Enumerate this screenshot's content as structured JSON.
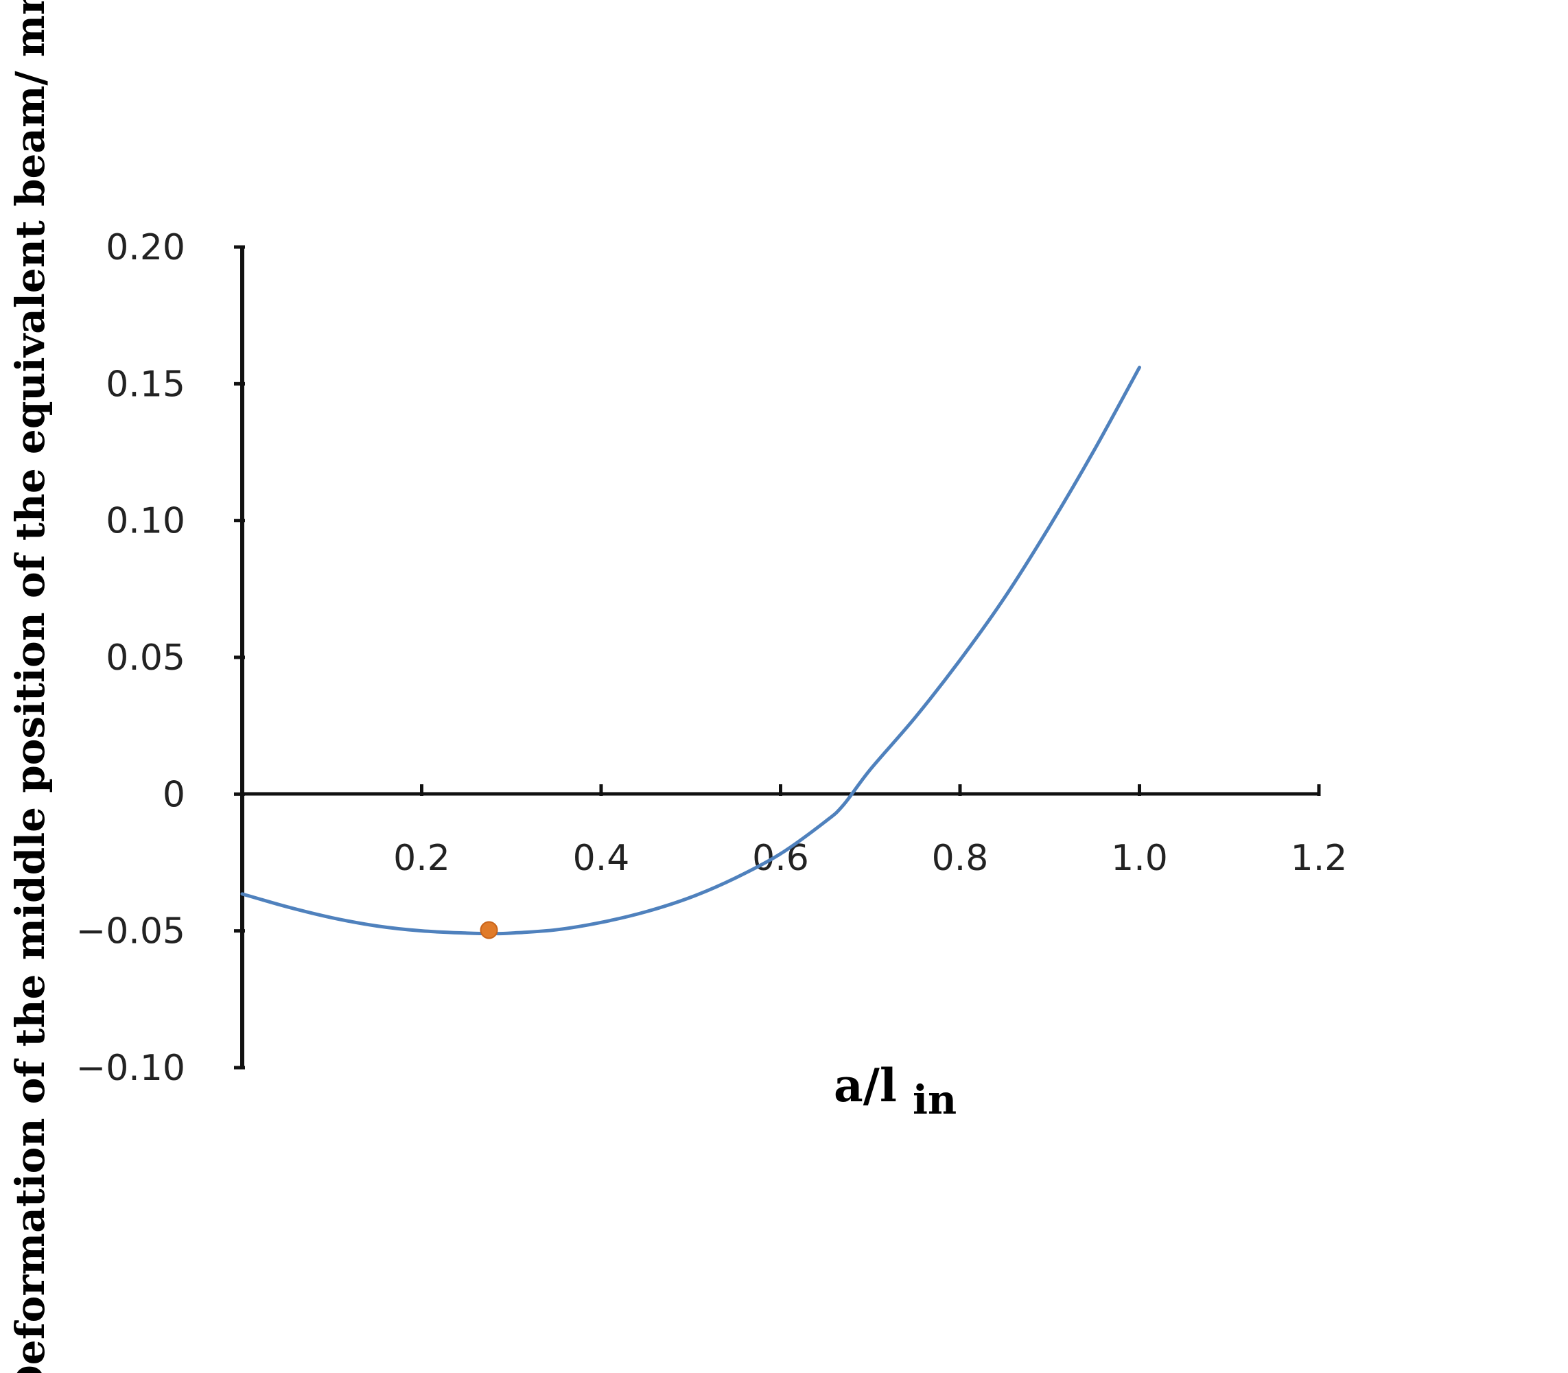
{
  "chart_data": {
    "type": "line",
    "title": "",
    "xlabel": "a/l",
    "xlabel_subscript": "in",
    "ylabel": "Deformation of the middle position of the equivalent beam/ mm",
    "xlim": [
      0,
      1.2
    ],
    "ylim": [
      -0.1,
      0.2
    ],
    "x_ticks": [
      0.2,
      0.4,
      0.6,
      0.8,
      1.0,
      1.2
    ],
    "x_tick_labels": [
      "0.2",
      "0.4",
      "0.6",
      "0.8",
      "1.0",
      "1.2"
    ],
    "y_ticks": [
      0.2,
      0.15,
      0.1,
      0.05,
      0,
      -0.05,
      -0.1
    ],
    "y_tick_labels": [
      "0.20",
      "0.15",
      "0.10",
      "0.05",
      "0",
      "−0.05",
      "−0.10"
    ],
    "grid": false,
    "series": [
      {
        "color": "#4f81bd",
        "x": [
          0.0,
          0.05,
          0.1,
          0.15,
          0.2,
          0.25,
          0.28,
          0.3,
          0.35,
          0.4,
          0.45,
          0.5,
          0.55,
          0.6,
          0.65,
          0.67,
          0.7,
          0.75,
          0.8,
          0.85,
          0.9,
          0.95,
          1.0
        ],
        "y": [
          -0.0365,
          -0.0412,
          -0.0452,
          -0.0482,
          -0.05,
          -0.0508,
          -0.051,
          -0.0508,
          -0.0496,
          -0.0469,
          -0.043,
          -0.0377,
          -0.0306,
          -0.0218,
          -0.01,
          -0.004,
          0.009,
          0.028,
          0.049,
          0.072,
          0.098,
          0.126,
          0.156
        ]
      }
    ],
    "highlight_points": [
      {
        "x": 0.275,
        "y": -0.0497,
        "color": "#e07b2a"
      }
    ]
  }
}
